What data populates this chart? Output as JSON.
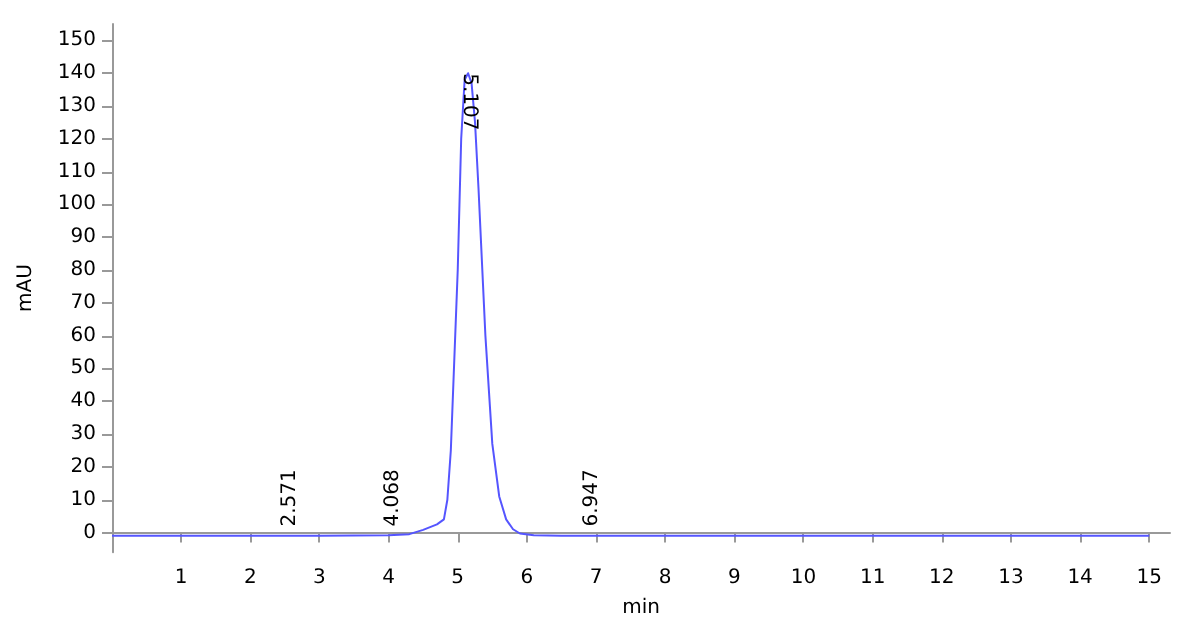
{
  "chart_data": {
    "type": "line",
    "xlabel": "min",
    "ylabel": "mAU",
    "xlim": [
      0,
      15.3
    ],
    "xticks": [
      1,
      2,
      3,
      4,
      5,
      6,
      7,
      8,
      9,
      10,
      11,
      12,
      13,
      14,
      15
    ],
    "ylim": [
      -6,
      155
    ],
    "yticks": [
      0,
      10,
      20,
      30,
      40,
      50,
      60,
      70,
      80,
      90,
      100,
      110,
      120,
      130,
      140,
      150
    ],
    "grid": false,
    "marker": "none",
    "line_style": "solid",
    "series": [
      {
        "color": "#5555ff",
        "x": [
          0,
          1,
          2,
          3,
          4,
          4.3,
          4.5,
          4.7,
          4.8,
          4.85,
          4.9,
          5.0,
          5.05,
          5.1,
          5.15,
          5.2,
          5.25,
          5.3,
          5.4,
          5.5,
          5.6,
          5.7,
          5.8,
          5.9,
          6.1,
          6.5,
          8,
          10,
          12,
          15
        ],
        "values": [
          -1,
          -1,
          -1,
          -1,
          -0.8,
          -0.5,
          0.8,
          2.5,
          4,
          10,
          25,
          80,
          120,
          138,
          140,
          137,
          125,
          105,
          60,
          27,
          11,
          4,
          1,
          -0.3,
          -0.8,
          -1,
          -1,
          -1,
          -1,
          -1
        ]
      }
    ],
    "annotations": [
      {
        "text": "2.571",
        "x": 2.571,
        "y": 0
      },
      {
        "text": "4.068",
        "x": 4.068,
        "y": 0
      },
      {
        "text": "5.107",
        "x": 5.107,
        "y": 140
      },
      {
        "text": "6.947",
        "x": 6.947,
        "y": 0
      }
    ]
  }
}
